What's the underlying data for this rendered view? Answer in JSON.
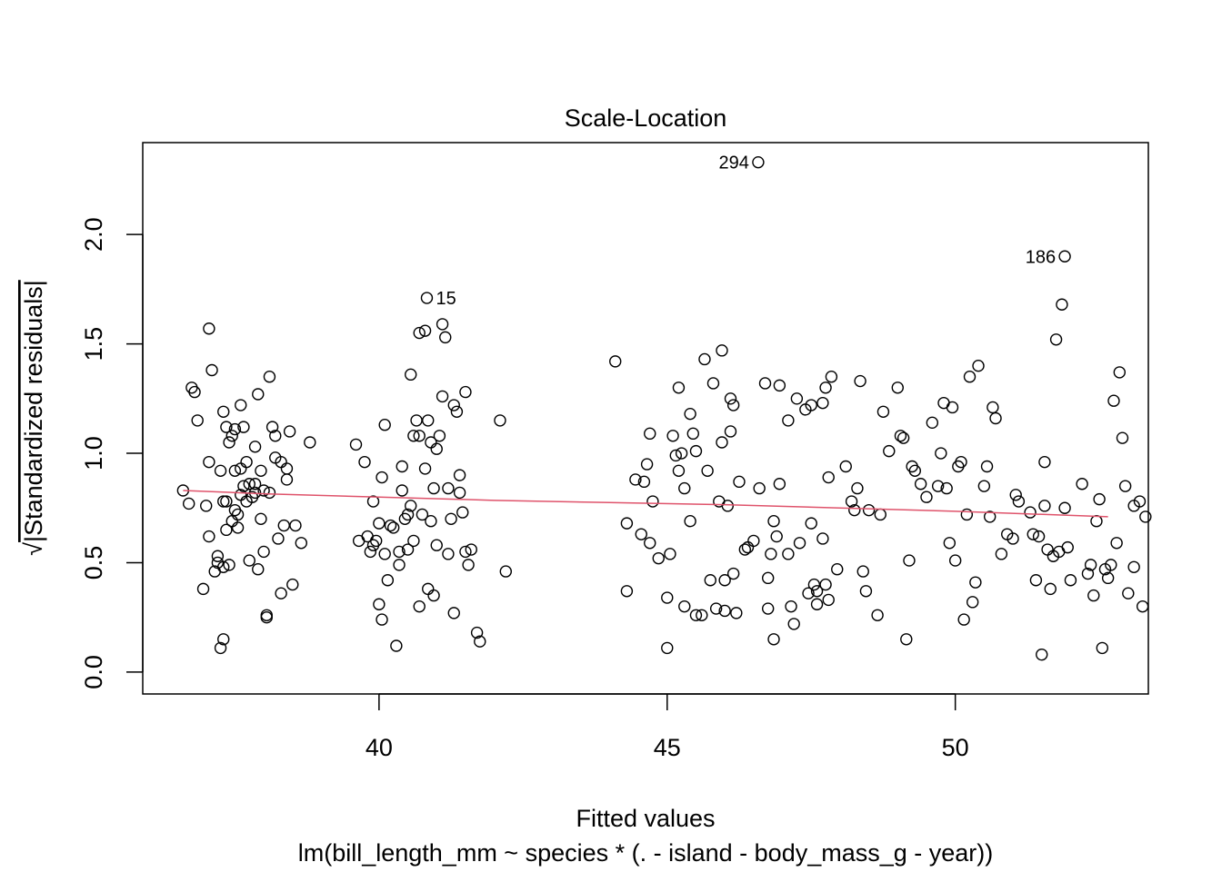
{
  "chart_data": {
    "type": "scatter",
    "title": "Scale-Location",
    "xlabel": "Fitted values",
    "subtitle": "lm(bill_length_mm ~ species * (. - island - body_mass_g - year))",
    "ylabel": "√|Standardized residuals|",
    "ylabel_radical": "√",
    "ylabel_text": "|Standardized residuals|",
    "xlim": [
      35.9,
      53.35
    ],
    "ylim": [
      -0.1,
      2.42
    ],
    "x_ticks": [
      40,
      45,
      50
    ],
    "x_tick_labels": [
      "40",
      "45",
      "50"
    ],
    "y_ticks": [
      0.0,
      0.5,
      1.0,
      1.5,
      2.0
    ],
    "y_tick_labels": [
      "0.0",
      "0.5",
      "1.0",
      "1.5",
      "2.0"
    ],
    "grid": false,
    "colors": {
      "points": "#000000",
      "smooth": "#DF536B"
    },
    "annotations": [
      {
        "label": "294",
        "x": 46.58,
        "y": 2.33,
        "side": "left"
      },
      {
        "label": "186",
        "x": 51.9,
        "y": 1.9,
        "side": "left"
      },
      {
        "label": "15",
        "x": 40.83,
        "y": 1.71,
        "side": "right"
      }
    ],
    "smooth_line": {
      "x": [
        36.6,
        38.0,
        40.0,
        42.0,
        44.0,
        46.0,
        48.0,
        50.0,
        52.65
      ],
      "y": [
        0.83,
        0.815,
        0.8,
        0.785,
        0.775,
        0.765,
        0.75,
        0.735,
        0.71
      ]
    },
    "points": [
      [
        36.6,
        0.83
      ],
      [
        36.7,
        0.77
      ],
      [
        36.75,
        1.3
      ],
      [
        36.8,
        1.28
      ],
      [
        36.85,
        1.15
      ],
      [
        36.95,
        0.38
      ],
      [
        37.0,
        0.76
      ],
      [
        37.05,
        0.62
      ],
      [
        37.05,
        0.96
      ],
      [
        37.05,
        1.57
      ],
      [
        37.1,
        1.38
      ],
      [
        37.15,
        0.46
      ],
      [
        37.2,
        0.53
      ],
      [
        37.2,
        0.5
      ],
      [
        37.25,
        0.92
      ],
      [
        37.25,
        0.11
      ],
      [
        37.3,
        0.15
      ],
      [
        37.3,
        0.48
      ],
      [
        37.3,
        1.19
      ],
      [
        37.3,
        0.78
      ],
      [
        37.35,
        0.65
      ],
      [
        37.35,
        1.12
      ],
      [
        37.4,
        0.49
      ],
      [
        37.4,
        1.05
      ],
      [
        37.45,
        0.69
      ],
      [
        37.45,
        1.08
      ],
      [
        37.5,
        0.74
      ],
      [
        37.5,
        0.92
      ],
      [
        37.55,
        0.66
      ],
      [
        37.55,
        0.72
      ],
      [
        37.6,
        0.81
      ],
      [
        37.6,
        1.22
      ],
      [
        37.65,
        1.12
      ],
      [
        37.65,
        0.85
      ],
      [
        37.7,
        0.96
      ],
      [
        37.7,
        0.78
      ],
      [
        37.75,
        0.51
      ],
      [
        37.75,
        0.86
      ],
      [
        37.8,
        0.8
      ],
      [
        37.85,
        0.82
      ],
      [
        37.85,
        1.03
      ],
      [
        37.9,
        0.47
      ],
      [
        37.9,
        1.27
      ],
      [
        37.95,
        0.92
      ],
      [
        37.95,
        0.7
      ],
      [
        38.0,
        0.55
      ],
      [
        38.0,
        0.83
      ],
      [
        38.05,
        0.25
      ],
      [
        38.05,
        0.26
      ],
      [
        38.1,
        1.35
      ],
      [
        38.1,
        0.82
      ],
      [
        38.15,
        1.12
      ],
      [
        38.2,
        1.08
      ],
      [
        38.2,
        0.98
      ],
      [
        38.25,
        0.61
      ],
      [
        38.3,
        0.36
      ],
      [
        38.3,
        0.96
      ],
      [
        38.35,
        0.67
      ],
      [
        38.4,
        0.93
      ],
      [
        38.4,
        0.88
      ],
      [
        38.45,
        1.1
      ],
      [
        38.5,
        0.4
      ],
      [
        38.55,
        0.67
      ],
      [
        38.65,
        0.59
      ],
      [
        38.8,
        1.05
      ],
      [
        37.5,
        1.11
      ],
      [
        37.35,
        0.78
      ],
      [
        37.85,
        0.86
      ],
      [
        37.6,
        0.93
      ],
      [
        39.6,
        1.04
      ],
      [
        39.65,
        0.6
      ],
      [
        39.75,
        0.96
      ],
      [
        39.8,
        0.62
      ],
      [
        39.85,
        0.55
      ],
      [
        39.9,
        0.58
      ],
      [
        39.9,
        0.78
      ],
      [
        39.95,
        0.6
      ],
      [
        40.0,
        0.68
      ],
      [
        40.0,
        0.31
      ],
      [
        40.05,
        0.24
      ],
      [
        40.05,
        0.89
      ],
      [
        40.1,
        0.54
      ],
      [
        40.1,
        1.13
      ],
      [
        40.15,
        0.42
      ],
      [
        40.2,
        0.67
      ],
      [
        40.25,
        0.66
      ],
      [
        40.3,
        0.12
      ],
      [
        40.35,
        0.55
      ],
      [
        40.35,
        0.49
      ],
      [
        40.4,
        0.94
      ],
      [
        40.4,
        0.83
      ],
      [
        40.45,
        0.7
      ],
      [
        40.5,
        0.56
      ],
      [
        40.5,
        0.72
      ],
      [
        40.55,
        1.36
      ],
      [
        40.55,
        0.76
      ],
      [
        40.6,
        0.6
      ],
      [
        40.6,
        1.08
      ],
      [
        40.65,
        1.15
      ],
      [
        40.7,
        1.55
      ],
      [
        40.7,
        1.08
      ],
      [
        40.7,
        0.3
      ],
      [
        40.75,
        0.72
      ],
      [
        40.8,
        1.56
      ],
      [
        40.8,
        0.93
      ],
      [
        40.85,
        1.15
      ],
      [
        40.85,
        0.38
      ],
      [
        40.9,
        0.69
      ],
      [
        40.9,
        1.05
      ],
      [
        40.95,
        0.84
      ],
      [
        40.95,
        0.35
      ],
      [
        41.0,
        1.02
      ],
      [
        41.0,
        0.58
      ],
      [
        41.05,
        1.08
      ],
      [
        41.1,
        1.26
      ],
      [
        41.1,
        1.59
      ],
      [
        41.15,
        1.53
      ],
      [
        41.2,
        0.84
      ],
      [
        41.2,
        0.54
      ],
      [
        41.25,
        0.7
      ],
      [
        41.3,
        1.22
      ],
      [
        41.3,
        0.27
      ],
      [
        41.35,
        1.19
      ],
      [
        41.4,
        0.9
      ],
      [
        41.4,
        0.82
      ],
      [
        41.45,
        0.73
      ],
      [
        41.5,
        0.55
      ],
      [
        41.5,
        1.28
      ],
      [
        41.55,
        0.49
      ],
      [
        41.6,
        0.56
      ],
      [
        41.7,
        0.18
      ],
      [
        41.75,
        0.14
      ],
      [
        42.1,
        1.15
      ],
      [
        42.2,
        0.46
      ],
      [
        40.83,
        1.71
      ],
      [
        44.1,
        1.42
      ],
      [
        44.3,
        0.68
      ],
      [
        44.3,
        0.37
      ],
      [
        44.45,
        0.88
      ],
      [
        44.55,
        0.63
      ],
      [
        44.6,
        0.87
      ],
      [
        44.65,
        0.95
      ],
      [
        44.7,
        0.59
      ],
      [
        44.7,
        1.09
      ],
      [
        44.75,
        0.78
      ],
      [
        44.85,
        0.52
      ],
      [
        45.0,
        0.34
      ],
      [
        45.0,
        0.11
      ],
      [
        45.05,
        0.54
      ],
      [
        45.1,
        1.08
      ],
      [
        45.15,
        0.99
      ],
      [
        45.2,
        0.92
      ],
      [
        45.2,
        1.3
      ],
      [
        45.25,
        1.0
      ],
      [
        45.3,
        0.3
      ],
      [
        45.3,
        0.84
      ],
      [
        45.4,
        1.18
      ],
      [
        45.4,
        0.69
      ],
      [
        45.45,
        1.09
      ],
      [
        45.5,
        0.26
      ],
      [
        45.5,
        1.01
      ],
      [
        45.6,
        0.26
      ],
      [
        45.65,
        1.43
      ],
      [
        45.7,
        0.92
      ],
      [
        45.75,
        0.42
      ],
      [
        45.8,
        1.32
      ],
      [
        45.85,
        0.29
      ],
      [
        45.9,
        0.78
      ],
      [
        45.95,
        1.47
      ],
      [
        45.95,
        1.05
      ],
      [
        46.0,
        0.42
      ],
      [
        46.0,
        0.28
      ],
      [
        46.05,
        0.76
      ],
      [
        46.1,
        1.1
      ],
      [
        46.1,
        1.25
      ],
      [
        46.15,
        1.22
      ],
      [
        46.15,
        0.45
      ],
      [
        46.2,
        0.27
      ],
      [
        46.25,
        0.87
      ],
      [
        46.35,
        0.56
      ],
      [
        46.4,
        0.57
      ],
      [
        46.5,
        0.6
      ],
      [
        46.6,
        0.84
      ],
      [
        46.7,
        1.32
      ],
      [
        46.75,
        0.43
      ],
      [
        46.75,
        0.29
      ],
      [
        46.8,
        0.54
      ],
      [
        46.85,
        0.15
      ],
      [
        46.85,
        0.69
      ],
      [
        46.9,
        0.62
      ],
      [
        46.95,
        1.31
      ],
      [
        46.95,
        0.86
      ],
      [
        47.1,
        0.54
      ],
      [
        47.1,
        1.15
      ],
      [
        47.15,
        0.3
      ],
      [
        47.2,
        0.22
      ],
      [
        47.25,
        1.25
      ],
      [
        47.3,
        0.59
      ],
      [
        47.4,
        1.2
      ],
      [
        47.45,
        0.36
      ],
      [
        47.5,
        0.68
      ],
      [
        47.5,
        1.22
      ],
      [
        47.55,
        0.4
      ],
      [
        47.6,
        0.31
      ],
      [
        47.6,
        0.37
      ],
      [
        47.7,
        1.23
      ],
      [
        47.7,
        0.61
      ],
      [
        47.75,
        0.4
      ],
      [
        47.75,
        1.3
      ],
      [
        47.8,
        0.33
      ],
      [
        47.8,
        0.89
      ],
      [
        47.85,
        1.35
      ],
      [
        47.95,
        0.47
      ],
      [
        48.1,
        0.94
      ],
      [
        48.2,
        0.78
      ],
      [
        48.25,
        0.74
      ],
      [
        48.3,
        0.84
      ],
      [
        48.35,
        1.33
      ],
      [
        48.4,
        0.46
      ],
      [
        48.45,
        0.37
      ],
      [
        48.5,
        0.74
      ],
      [
        48.65,
        0.26
      ],
      [
        48.7,
        0.72
      ],
      [
        48.75,
        1.19
      ],
      [
        48.85,
        1.01
      ],
      [
        49.0,
        1.3
      ],
      [
        49.05,
        1.08
      ],
      [
        49.1,
        1.07
      ],
      [
        49.15,
        0.15
      ],
      [
        49.2,
        0.51
      ],
      [
        49.25,
        0.94
      ],
      [
        49.3,
        0.92
      ],
      [
        49.4,
        0.86
      ],
      [
        49.5,
        0.8
      ],
      [
        49.6,
        1.14
      ],
      [
        49.7,
        0.85
      ],
      [
        49.75,
        1.0
      ],
      [
        49.8,
        1.23
      ],
      [
        49.85,
        0.84
      ],
      [
        49.9,
        0.59
      ],
      [
        49.95,
        1.21
      ],
      [
        50.0,
        0.51
      ],
      [
        50.05,
        0.94
      ],
      [
        50.1,
        0.96
      ],
      [
        50.15,
        0.24
      ],
      [
        50.2,
        0.72
      ],
      [
        50.25,
        1.35
      ],
      [
        50.3,
        0.32
      ],
      [
        50.35,
        0.41
      ],
      [
        50.4,
        1.4
      ],
      [
        50.5,
        0.85
      ],
      [
        50.55,
        0.94
      ],
      [
        50.6,
        0.71
      ],
      [
        50.65,
        1.21
      ],
      [
        50.7,
        1.16
      ],
      [
        50.8,
        0.54
      ],
      [
        50.9,
        0.63
      ],
      [
        51.0,
        0.61
      ],
      [
        51.05,
        0.81
      ],
      [
        51.1,
        0.78
      ],
      [
        51.3,
        0.73
      ],
      [
        51.35,
        0.63
      ],
      [
        51.4,
        0.42
      ],
      [
        51.45,
        0.62
      ],
      [
        51.5,
        0.08
      ],
      [
        51.55,
        0.96
      ],
      [
        51.55,
        0.76
      ],
      [
        51.6,
        0.56
      ],
      [
        51.65,
        0.38
      ],
      [
        51.7,
        0.53
      ],
      [
        51.75,
        1.52
      ],
      [
        51.8,
        0.55
      ],
      [
        51.85,
        1.68
      ],
      [
        51.9,
        0.75
      ],
      [
        51.95,
        0.57
      ],
      [
        52.0,
        0.42
      ],
      [
        52.2,
        0.86
      ],
      [
        52.3,
        0.45
      ],
      [
        52.35,
        0.49
      ],
      [
        52.4,
        0.35
      ],
      [
        52.45,
        0.69
      ],
      [
        52.5,
        0.79
      ],
      [
        52.55,
        0.11
      ],
      [
        52.6,
        0.47
      ],
      [
        52.65,
        0.43
      ],
      [
        52.7,
        0.49
      ],
      [
        52.75,
        1.24
      ],
      [
        52.8,
        0.59
      ],
      [
        52.85,
        1.37
      ],
      [
        52.9,
        1.07
      ],
      [
        52.95,
        0.85
      ],
      [
        53.0,
        0.36
      ],
      [
        53.1,
        0.48
      ],
      [
        53.1,
        0.76
      ],
      [
        53.2,
        0.78
      ],
      [
        53.25,
        0.3
      ],
      [
        53.3,
        0.71
      ],
      [
        51.9,
        1.9
      ],
      [
        46.58,
        2.33
      ]
    ]
  }
}
